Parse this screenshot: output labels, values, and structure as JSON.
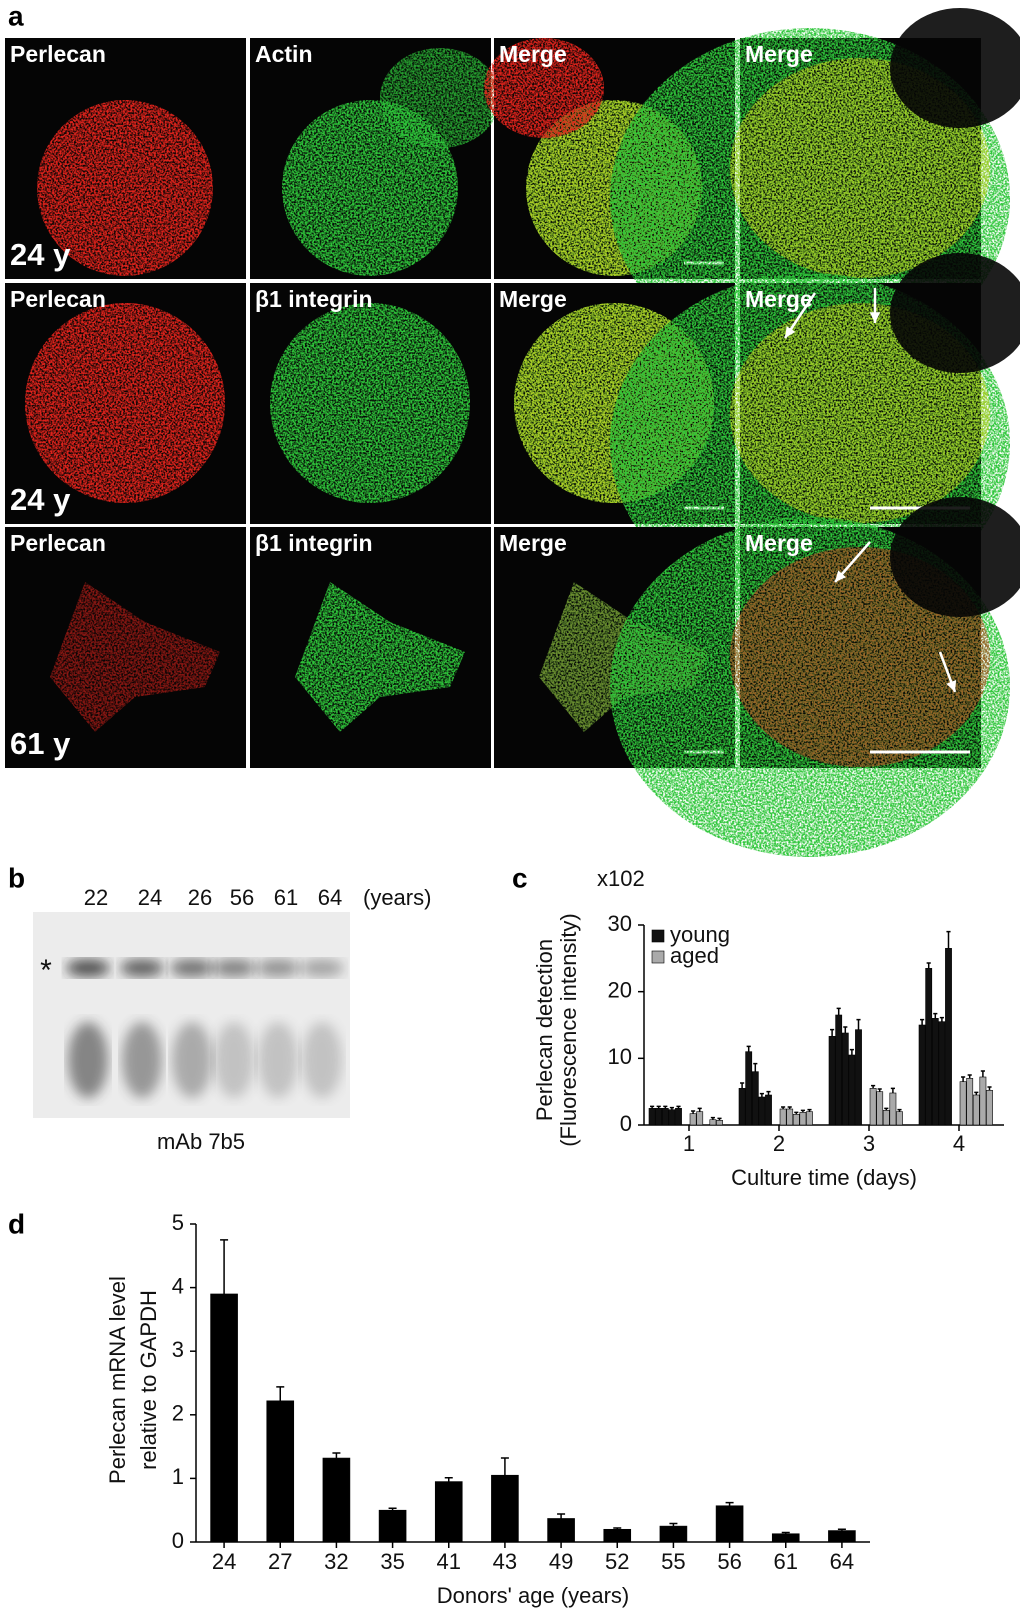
{
  "panel_a": {
    "letter": "a",
    "rows": [
      {
        "channels": [
          "Perlecan",
          "Actin",
          "Merge",
          "Merge"
        ],
        "donor": "24 y"
      },
      {
        "channels": [
          "Perlecan",
          "β1 integrin",
          "Merge",
          "Merge"
        ],
        "donor": "24 y"
      },
      {
        "channels": [
          "Perlecan",
          "β1 integrin",
          "Merge",
          "Merge"
        ],
        "donor": "61 y"
      }
    ]
  },
  "panel_b": {
    "letter": "b",
    "lanes": [
      "22",
      "24",
      "26",
      "56",
      "61",
      "64"
    ],
    "lane_unit": "(years)",
    "band_marker": "*",
    "antibody": "mAb 7b5"
  },
  "chart_data": [
    {
      "type": "bar",
      "letter": "c",
      "scale_note": "x102",
      "ylabel": [
        "Perlecan detection",
        "(Fluorescence intensity)"
      ],
      "xlabel": "Culture time (days)",
      "categories": [
        "1",
        "2",
        "3",
        "4"
      ],
      "series": [
        {
          "name": "young",
          "color": "#111111",
          "values": [
            [
              2.5,
              2.5,
              2.5,
              2.3,
              2.5
            ],
            [
              5.5,
              11,
              8,
              4.2,
              4.5
            ],
            [
              13.3,
              16.5,
              13.8,
              10.5,
              14.3
            ],
            [
              15,
              23.5,
              16,
              15.5,
              26.5
            ]
          ],
          "errors": [
            [
              0.3,
              0.3,
              0.3,
              0.3,
              0.3
            ],
            [
              0.8,
              0.8,
              1.2,
              0.5,
              0.5
            ],
            [
              1,
              1,
              0.9,
              0.8,
              1.5
            ],
            [
              0.8,
              0.8,
              0.7,
              0.6,
              2.5
            ]
          ]
        },
        {
          "name": "aged",
          "color": "#aaaaaa",
          "values": [
            [
              1.7,
              2,
              null,
              0.8,
              0.7
            ],
            [
              2.4,
              2.4,
              1.6,
              1.9,
              2
            ],
            [
              5.5,
              5,
              2.2,
              4.8,
              2
            ],
            [
              6.5,
              7,
              4.5,
              7.2,
              5.2
            ]
          ],
          "errors": [
            [
              0.4,
              0.5,
              null,
              0.3,
              0.3
            ],
            [
              0.3,
              0.3,
              0.3,
              0.3,
              0.3
            ],
            [
              0.4,
              0.4,
              0.3,
              0.7,
              0.3
            ],
            [
              0.7,
              0.5,
              0.4,
              0.9,
              0.5
            ]
          ]
        }
      ],
      "ylim": [
        0,
        30
      ],
      "yticks": [
        0,
        10,
        20,
        30
      ]
    },
    {
      "type": "bar",
      "letter": "d",
      "ylabel": [
        "Perlecan mRNA level",
        "relative to GAPDH"
      ],
      "xlabel": "Donors' age (years)",
      "categories": [
        "24",
        "27",
        "32",
        "35",
        "41",
        "43",
        "49",
        "52",
        "55",
        "56",
        "61",
        "64"
      ],
      "series": [
        {
          "color": "#000000",
          "values": [
            3.9,
            2.22,
            1.32,
            0.5,
            0.95,
            1.05,
            0.37,
            0.2,
            0.25,
            0.57,
            0.13,
            0.18
          ],
          "errors": [
            0.85,
            0.22,
            0.08,
            0.03,
            0.06,
            0.27,
            0.07,
            0.02,
            0.04,
            0.05,
            0.02,
            0.02
          ]
        }
      ],
      "ylim": [
        0,
        5
      ],
      "yticks": [
        0,
        1,
        2,
        3,
        4,
        5
      ]
    }
  ]
}
